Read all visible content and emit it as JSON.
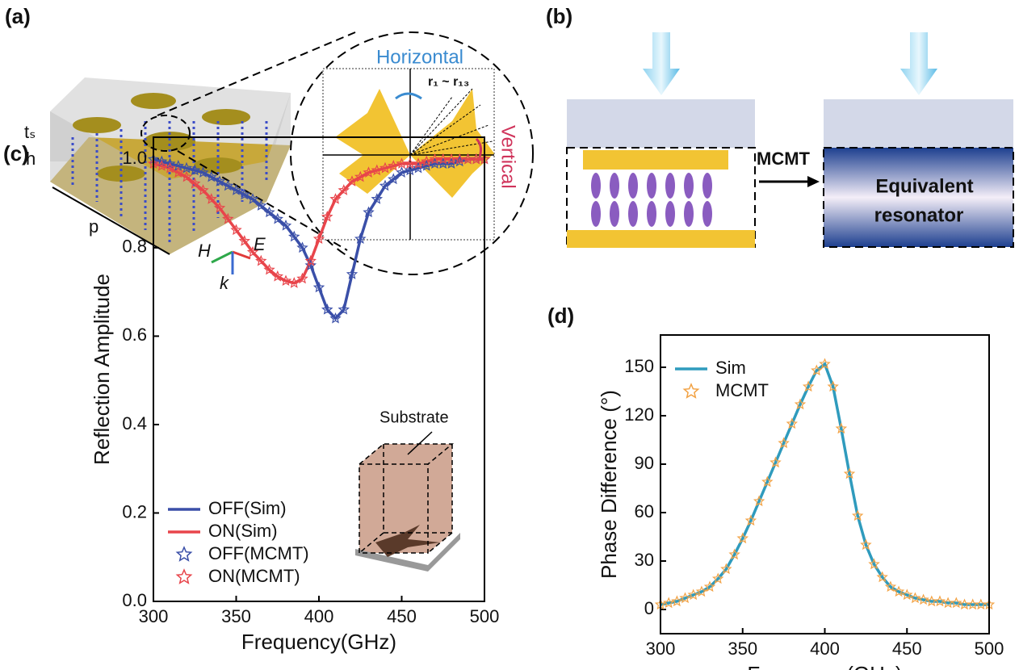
{
  "panel_a": {
    "label": "(a)",
    "horizontal": "Horizontal",
    "vertical": "Vertical",
    "radii": "r₁ ~ r₁₃",
    "ts": "tₛ",
    "h": "h",
    "p": "p",
    "H": "H",
    "E": "E",
    "k": "k"
  },
  "panel_b": {
    "label": "(b)",
    "method": "MCMT",
    "equivalent": "Equivalent",
    "resonator": "resonator"
  },
  "chart_data": [
    {
      "type": "line",
      "label": "(c)",
      "xlabel": "Frequency(GHz)",
      "ylabel": "Reflection Amplitude",
      "inset_label": "Substrate",
      "legend": "lower left",
      "x": [
        300,
        305,
        310,
        315,
        320,
        325,
        330,
        335,
        340,
        345,
        350,
        355,
        360,
        365,
        370,
        375,
        380,
        385,
        390,
        395,
        400,
        405,
        410,
        415,
        420,
        425,
        430,
        435,
        440,
        445,
        450,
        455,
        460,
        465,
        470,
        475,
        480,
        485,
        490,
        495,
        500
      ],
      "series": [
        {
          "name": "OFF(Sim)",
          "color": "#3a4fa8",
          "style": "line",
          "values": [
            1.0,
            0.995,
            0.99,
            0.985,
            0.98,
            0.975,
            0.97,
            0.96,
            0.95,
            0.94,
            0.93,
            0.92,
            0.91,
            0.895,
            0.88,
            0.865,
            0.85,
            0.825,
            0.8,
            0.76,
            0.71,
            0.66,
            0.64,
            0.66,
            0.74,
            0.82,
            0.88,
            0.91,
            0.94,
            0.955,
            0.97,
            0.975,
            0.98,
            0.985,
            0.99,
            0.99,
            0.99,
            0.995,
            1.0,
            1.0,
            1.0
          ]
        },
        {
          "name": "ON(Sim)",
          "color": "#e8454b",
          "style": "line",
          "values": [
            0.99,
            0.985,
            0.98,
            0.97,
            0.96,
            0.945,
            0.93,
            0.91,
            0.89,
            0.865,
            0.84,
            0.815,
            0.79,
            0.77,
            0.75,
            0.735,
            0.725,
            0.72,
            0.73,
            0.77,
            0.82,
            0.87,
            0.91,
            0.93,
            0.95,
            0.96,
            0.97,
            0.975,
            0.98,
            0.985,
            0.99,
            0.99,
            0.99,
            0.995,
            1.0,
            1.0,
            1.0,
            1.0,
            1.0,
            1.0,
            1.0
          ]
        },
        {
          "name": "OFF(MCMT)",
          "color": "#3a4fa8",
          "style": "star",
          "values": [
            1.0,
            0.995,
            0.99,
            0.985,
            0.98,
            0.975,
            0.97,
            0.96,
            0.95,
            0.94,
            0.93,
            0.92,
            0.91,
            0.895,
            0.88,
            0.865,
            0.85,
            0.825,
            0.8,
            0.76,
            0.71,
            0.66,
            0.64,
            0.66,
            0.74,
            0.82,
            0.88,
            0.91,
            0.94,
            0.955,
            0.97,
            0.975,
            0.98,
            0.985,
            0.99,
            0.99,
            0.99,
            0.995,
            1.0,
            1.0,
            1.0
          ]
        },
        {
          "name": "ON(MCMT)",
          "color": "#e8454b",
          "style": "star",
          "values": [
            0.99,
            0.985,
            0.98,
            0.97,
            0.96,
            0.945,
            0.93,
            0.91,
            0.89,
            0.865,
            0.84,
            0.815,
            0.79,
            0.77,
            0.75,
            0.735,
            0.725,
            0.72,
            0.73,
            0.77,
            0.82,
            0.87,
            0.91,
            0.93,
            0.95,
            0.96,
            0.97,
            0.975,
            0.98,
            0.985,
            0.99,
            0.99,
            0.99,
            0.995,
            1.0,
            1.0,
            1.0,
            1.0,
            1.0,
            1.0,
            1.0
          ]
        }
      ],
      "xlim": [
        300,
        500
      ],
      "xticks": [
        300,
        350,
        400,
        450,
        500
      ],
      "ylim": [
        0,
        1.05
      ],
      "yticks": [
        {
          "value": 0,
          "label": "0.0"
        },
        {
          "value": 0.2,
          "label": "0.2"
        },
        {
          "value": 0.4,
          "label": "0.4"
        },
        {
          "value": 0.6,
          "label": "0.6"
        },
        {
          "value": 0.8,
          "label": "0.8"
        },
        {
          "value": 1,
          "label": "1.0"
        }
      ]
    },
    {
      "type": "line",
      "label": "(d)",
      "xlabel": "Frequency(GHz)",
      "ylabel": "Phase Difference (°)",
      "legend": "upper left",
      "x": [
        300,
        305,
        310,
        315,
        320,
        325,
        330,
        335,
        340,
        345,
        350,
        355,
        360,
        365,
        370,
        375,
        380,
        385,
        390,
        395,
        400,
        405,
        410,
        415,
        420,
        425,
        430,
        435,
        440,
        445,
        450,
        455,
        460,
        465,
        470,
        475,
        480,
        485,
        490,
        495,
        500
      ],
      "series": [
        {
          "name": "Sim",
          "color": "#2f9bbd",
          "style": "line",
          "values": [
            3,
            4,
            5,
            7,
            9,
            11,
            14,
            19,
            25,
            34,
            44,
            55,
            67,
            79,
            91,
            103,
            115,
            127,
            138,
            148,
            152,
            138,
            112,
            84,
            58,
            40,
            28,
            20,
            14,
            11,
            9,
            7,
            6,
            5,
            5,
            4,
            4,
            3,
            3,
            3,
            3
          ]
        },
        {
          "name": "MCMT",
          "color": "#f2a244",
          "style": "star",
          "values": [
            3,
            4,
            5,
            7,
            9,
            11,
            14,
            19,
            25,
            34,
            44,
            55,
            67,
            79,
            91,
            103,
            115,
            127,
            138,
            148,
            152,
            138,
            112,
            84,
            58,
            40,
            28,
            20,
            14,
            11,
            9,
            7,
            6,
            5,
            5,
            4,
            4,
            3,
            3,
            3,
            3
          ]
        }
      ],
      "xlim": [
        300,
        500
      ],
      "xticks": [
        300,
        350,
        400,
        450,
        500
      ],
      "ylim": [
        -15,
        170
      ],
      "yticks": [
        0,
        30,
        60,
        90,
        120,
        150
      ]
    }
  ]
}
